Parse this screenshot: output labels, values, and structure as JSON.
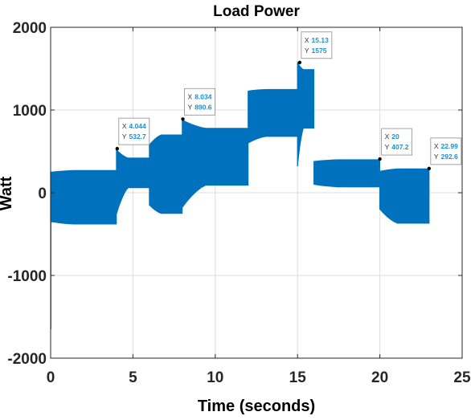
{
  "chart_data": {
    "type": "line",
    "title": "Load Power",
    "xlabel": "Time (seconds)",
    "ylabel": "Watt",
    "xlim": [
      0,
      25
    ],
    "ylim": [
      -2000,
      2000
    ],
    "xticks": [
      "0",
      "5",
      "10",
      "15",
      "20",
      "25"
    ],
    "yticks": [
      "2000",
      "1000",
      "0",
      "-1000",
      "-2000"
    ],
    "grid": true,
    "series_color": "#0072bd",
    "series": [
      {
        "envelope": [
          {
            "x0": 0.0,
            "x1": 4.0,
            "hi": 270,
            "lo": -380,
            "start_hi": 250,
            "start_lo": -350,
            "end_hi": 270,
            "end_lo": -380
          },
          {
            "x0": 4.0,
            "x1": 6.0,
            "hi": 420,
            "lo": 60,
            "start_hi": 520,
            "start_lo": -260,
            "end_hi": 420,
            "end_lo": 60
          },
          {
            "x0": 6.0,
            "x1": 8.0,
            "hi": 700,
            "lo": -250,
            "start_hi": 580,
            "start_lo": -150,
            "end_hi": 700,
            "end_lo": -250
          },
          {
            "x0": 8.0,
            "x1": 12.0,
            "hi": 780,
            "lo": 80,
            "start_hi": 880,
            "start_lo": -180,
            "end_hi": 780,
            "end_lo": 90
          },
          {
            "x0": 12.0,
            "x1": 15.0,
            "hi": 1250,
            "lo": 650,
            "start_hi": 1230,
            "start_lo": 600,
            "end_hi": 1250,
            "end_lo": 680
          },
          {
            "x0": 15.0,
            "x1": 16.0,
            "hi": 1500,
            "lo": 700,
            "start_hi": 1575,
            "start_lo": 320,
            "end_hi": 1490,
            "end_lo": 780
          },
          {
            "x0": 16.0,
            "x1": 20.0,
            "hi": 400,
            "lo": 70,
            "start_hi": 380,
            "start_lo": 100,
            "end_hi": 400,
            "end_lo": 70
          },
          {
            "x0": 20.0,
            "x1": 23.0,
            "hi": 290,
            "lo": -370,
            "start_hi": 260,
            "start_lo": -200,
            "end_hi": 290,
            "end_lo": -370
          }
        ]
      }
    ],
    "datatips": [
      {
        "x": 4.044,
        "y": 532.7,
        "xlabel": "X",
        "ylabel": "Y",
        "xtext": "4.044",
        "ytext": "532.7"
      },
      {
        "x": 8.034,
        "y": 890.6,
        "xlabel": "X",
        "ylabel": "Y",
        "xtext": "8.034",
        "ytext": "890.6"
      },
      {
        "x": 15.13,
        "y": 1575,
        "xlabel": "X",
        "ylabel": "Y",
        "xtext": "15.13",
        "ytext": "1575"
      },
      {
        "x": 20,
        "y": 407.2,
        "xlabel": "X",
        "ylabel": "Y",
        "xtext": "20",
        "ytext": "407.2"
      },
      {
        "x": 22.99,
        "y": 292.6,
        "xlabel": "X",
        "ylabel": "Y",
        "xtext": "22.99",
        "ytext": "292.6"
      }
    ]
  }
}
